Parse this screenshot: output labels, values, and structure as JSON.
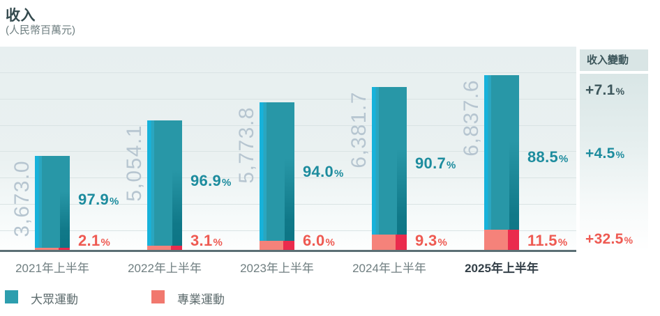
{
  "title": "收入",
  "subtitle": "(人民幣百萬元)",
  "change_panel": {
    "header": "收入變動",
    "rows": [
      {
        "name": "total-change",
        "value": "+7.1",
        "sign": "%"
      },
      {
        "name": "mass-sports-change",
        "value": "+4.5",
        "sign": "%"
      },
      {
        "name": "pro-sports-change",
        "value": "+32.5",
        "sign": "%"
      }
    ]
  },
  "legend": {
    "items": [
      {
        "label": "大眾運動",
        "color": "#2d9eae"
      },
      {
        "label": "專業運動",
        "color": "#f1786e"
      }
    ]
  },
  "colors": {
    "mass_bar": "#2897a7",
    "mass_bar_light": "#17b2da",
    "mass_bar_dark": "#0c7c8b",
    "pro_bar": "#f5827a",
    "pro_bar_dark": "#ea2b4d",
    "teal_text": "#1d8c9e",
    "red_text": "#ee5a52",
    "total_text": "#3d575c",
    "value_label_text": "#b6c5d0",
    "baseline": "#5b6f74"
  },
  "chart_data": {
    "type": "bar",
    "stacked": true,
    "title": "收入",
    "unit": "人民幣百萬元",
    "grid": "horizontal",
    "ylim": [
      0,
      7000
    ],
    "categories": [
      "2021年上半年",
      "2022年上半年",
      "2023年上半年",
      "2024年上半年",
      "2025年上半年"
    ],
    "highlight_category": "2025年上半年",
    "totals": [
      3673.0,
      5054.1,
      5773.8,
      6381.7,
      6837.6
    ],
    "total_labels": [
      "3,673.0",
      "5,054.1",
      "5,773.8",
      "6,381.7",
      "6,837.6"
    ],
    "series": [
      {
        "name": "大眾運動",
        "share_pct": [
          97.9,
          96.9,
          94.0,
          90.7,
          88.5
        ],
        "share_labels": [
          "97.9",
          "96.9",
          "94.0",
          "90.7",
          "88.5"
        ]
      },
      {
        "name": "專業運動",
        "share_pct": [
          2.1,
          3.1,
          6.0,
          9.3,
          11.5
        ],
        "share_labels": [
          "2.1",
          "3.1",
          "6.0",
          "9.3",
          "11.5"
        ]
      }
    ]
  }
}
